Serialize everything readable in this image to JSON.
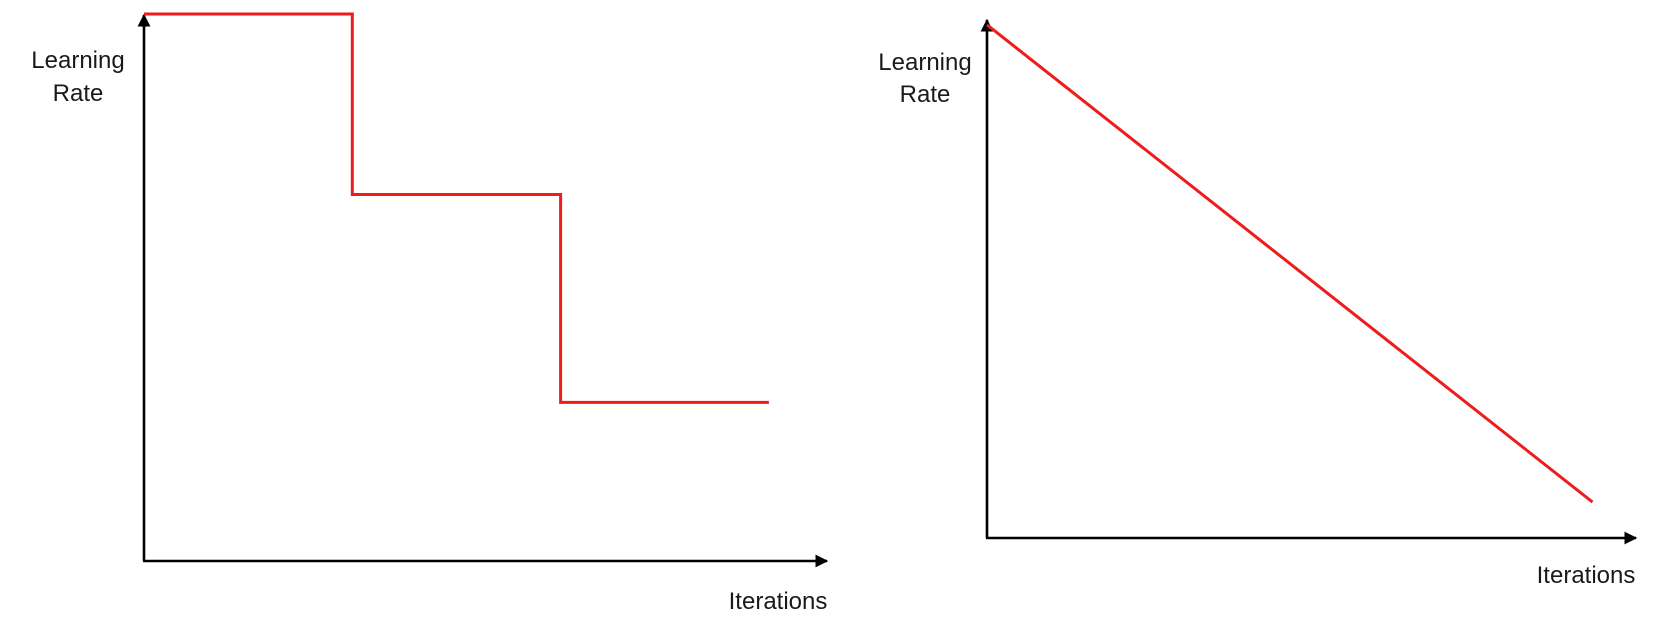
{
  "colors": {
    "series": "#ee1c1c",
    "axis": "#000000"
  },
  "chart_data": [
    {
      "type": "line",
      "title": "",
      "xlabel": "Iterations",
      "ylabel": [
        "Learning",
        "Rate"
      ],
      "ticks": "none",
      "grid": false,
      "xlim": [
        0,
        10
      ],
      "ylim": [
        0,
        10
      ],
      "series": [
        {
          "x": [
            0,
            3.05,
            3.05,
            6.1,
            6.1,
            9.15
          ],
          "y": [
            10,
            10,
            6.7,
            6.7,
            2.9,
            2.9
          ]
        }
      ]
    },
    {
      "type": "line",
      "title": "",
      "xlabel": "Iterations",
      "ylabel": [
        "Learning",
        "Rate"
      ],
      "ticks": "none",
      "grid": false,
      "xlim": [
        0,
        10
      ],
      "ylim": [
        0,
        10
      ],
      "series": [
        {
          "x": [
            0,
            9.33
          ],
          "y": [
            9.87,
            0.69
          ]
        }
      ]
    }
  ]
}
